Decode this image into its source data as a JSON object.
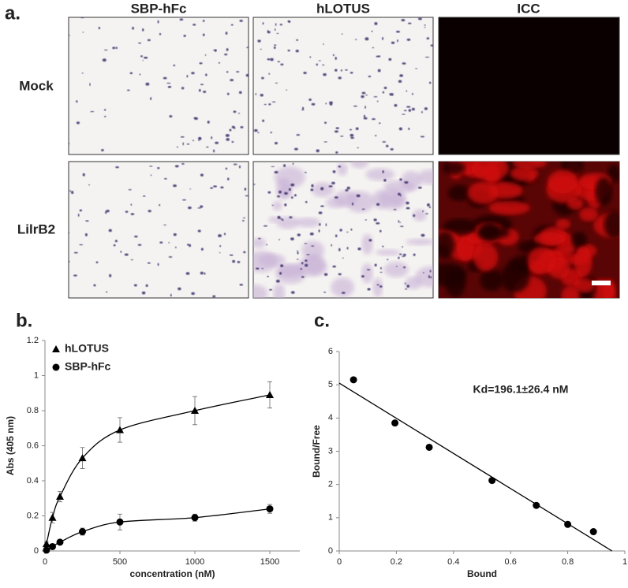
{
  "panel_a": {
    "label": "a.",
    "columns": [
      "SBP-hFc",
      "hLOTUS",
      "ICC"
    ],
    "rows": [
      "Mock",
      "LilrB2"
    ]
  },
  "chart_data": [
    {
      "type": "line",
      "panel_label": "b.",
      "xlabel": "concentration (nM)",
      "ylabel": "Abs (405 nm)",
      "x": [
        10,
        50,
        100,
        250,
        500,
        1000,
        1500
      ],
      "series": [
        {
          "name": "hLOTUS",
          "color": "#000000",
          "marker": "triangle",
          "values": [
            0.04,
            0.19,
            0.31,
            0.53,
            0.69,
            0.8,
            0.89
          ],
          "errors": [
            0.01,
            0.03,
            0.03,
            0.06,
            0.07,
            0.08,
            0.075
          ]
        },
        {
          "name": "SBP-hFc",
          "color": "#000000",
          "marker": "circle",
          "values": [
            0.005,
            0.025,
            0.05,
            0.11,
            0.165,
            0.19,
            0.24
          ],
          "errors": [
            0.005,
            0.01,
            0.01,
            0.02,
            0.045,
            0.02,
            0.025
          ]
        }
      ],
      "xlim": [
        0,
        1700
      ],
      "xticks": [
        0,
        500,
        1000,
        1500
      ],
      "ylim": [
        0,
        1.2
      ],
      "yticks": [
        0,
        0.2,
        0.4,
        0.6,
        0.8,
        1,
        1.2
      ]
    },
    {
      "type": "scatter",
      "panel_label": "c.",
      "xlabel": "Bound",
      "ylabel": "Bound/Free",
      "annotation": "Kd=196.1±26.4 nM",
      "x": [
        0.05,
        0.195,
        0.315,
        0.535,
        0.69,
        0.8,
        0.89
      ],
      "values": [
        5.15,
        3.85,
        3.12,
        2.12,
        1.37,
        0.8,
        0.58
      ],
      "color": "#000000",
      "fit_line": {
        "x": [
          0,
          0.955
        ],
        "y": [
          5.05,
          0
        ]
      },
      "xlim": [
        0,
        1
      ],
      "xticks": [
        0,
        0.2,
        0.4,
        0.6,
        0.8,
        1
      ],
      "ylim": [
        0,
        6
      ],
      "yticks": [
        0,
        1,
        2,
        3,
        4,
        5,
        6
      ]
    }
  ]
}
